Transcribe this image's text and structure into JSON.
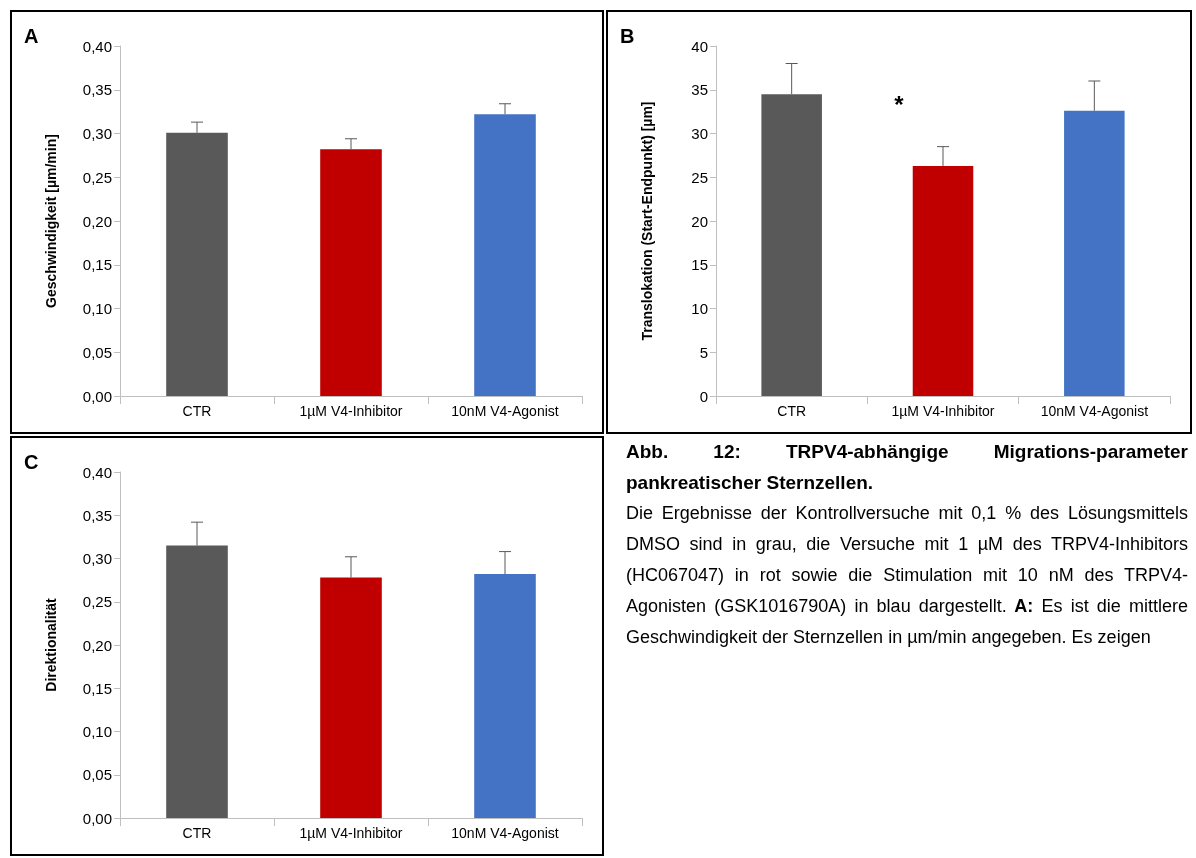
{
  "chart_data": [
    {
      "type": "bar",
      "title": "A",
      "ylabel": "Geschwindigkeit [µm/min]",
      "categories": [
        "CTR",
        "1µM V4-Inhibitor",
        "10nM V4-Agonist"
      ],
      "values": [
        0.301,
        0.282,
        0.322
      ],
      "colors": [
        "#595959",
        "#c00000",
        "#4472c4"
      ],
      "errors": [
        [
          0.301,
          0.313
        ],
        [
          0.282,
          0.294
        ],
        [
          0.322,
          0.334
        ]
      ],
      "ylim": [
        0,
        0.4
      ],
      "yticks": [
        {
          "value": 0,
          "label": "0,00"
        },
        {
          "value": 0.05,
          "label": "0,05"
        },
        {
          "value": 0.1,
          "label": "0,10"
        },
        {
          "value": 0.15,
          "label": "0,15"
        },
        {
          "value": 0.2,
          "label": "0,20"
        },
        {
          "value": 0.25,
          "label": "0,25"
        },
        {
          "value": 0.3,
          "label": "0,30"
        },
        {
          "value": 0.35,
          "label": "0,35"
        },
        {
          "value": 0.4,
          "label": "0,40"
        }
      ],
      "grid": false
    },
    {
      "type": "bar",
      "title": "B",
      "ylabel": "Translokation (Start-Endpunkt) [µm]",
      "categories": [
        "CTR",
        "1µM V4-Inhibitor",
        "10nM V4-Agonist"
      ],
      "values": [
        34.5,
        26.3,
        32.6
      ],
      "colors": [
        "#595959",
        "#c00000",
        "#4472c4"
      ],
      "errors": [
        [
          34.5,
          38
        ],
        [
          26.3,
          28.5
        ],
        [
          32.6,
          36
        ]
      ],
      "ylim": [
        0,
        40
      ],
      "yticks": [
        0,
        5,
        10,
        15,
        20,
        25,
        30,
        35,
        40
      ],
      "annotations": [
        "*"
      ],
      "grid": false
    },
    {
      "type": "bar",
      "title": "C",
      "ylabel": "Direktionalität",
      "categories": [
        "CTR",
        "1µM V4-Inhibitor",
        "10nM V4-Agonist"
      ],
      "values": [
        0.315,
        0.278,
        0.282
      ],
      "colors": [
        "#595959",
        "#c00000",
        "#4472c4"
      ],
      "errors": [
        [
          0.315,
          0.342
        ],
        [
          0.278,
          0.302
        ],
        [
          0.282,
          0.308
        ]
      ],
      "ylim": [
        0,
        0.4
      ],
      "yticks": [
        {
          "value": 0,
          "label": "0,00"
        },
        {
          "value": 0.05,
          "label": "0,05"
        },
        {
          "value": 0.1,
          "label": "0,10"
        },
        {
          "value": 0.15,
          "label": "0,15"
        },
        {
          "value": 0.2,
          "label": "0,20"
        },
        {
          "value": 0.25,
          "label": "0,25"
        },
        {
          "value": 0.3,
          "label": "0,30"
        },
        {
          "value": 0.35,
          "label": "0,35"
        },
        {
          "value": 0.4,
          "label": "0,40"
        }
      ],
      "grid": false
    },
    {
      "type": "other",
      "annotations": [
        "Abb. 12: TRPV4-abhängige Migrations-parameter pankreatischer Sternzellen.",
        "Die Ergebnisse der Kontrollversuche mit 0,1 % des Lösungsmittels DMSO sind in grau, die Versuche mit 1 µM des TRPV4-Inhibitors (HC067047) in rot sowie die Stimulation mit 10 nM des TRPV4-Agonisten (GSK1016790A) in blau dargestellt.",
        "A:",
        "Es ist die mittlere Geschwindigkeit der Sternzellen in µm/min angegeben. Es zeigen"
      ]
    }
  ]
}
